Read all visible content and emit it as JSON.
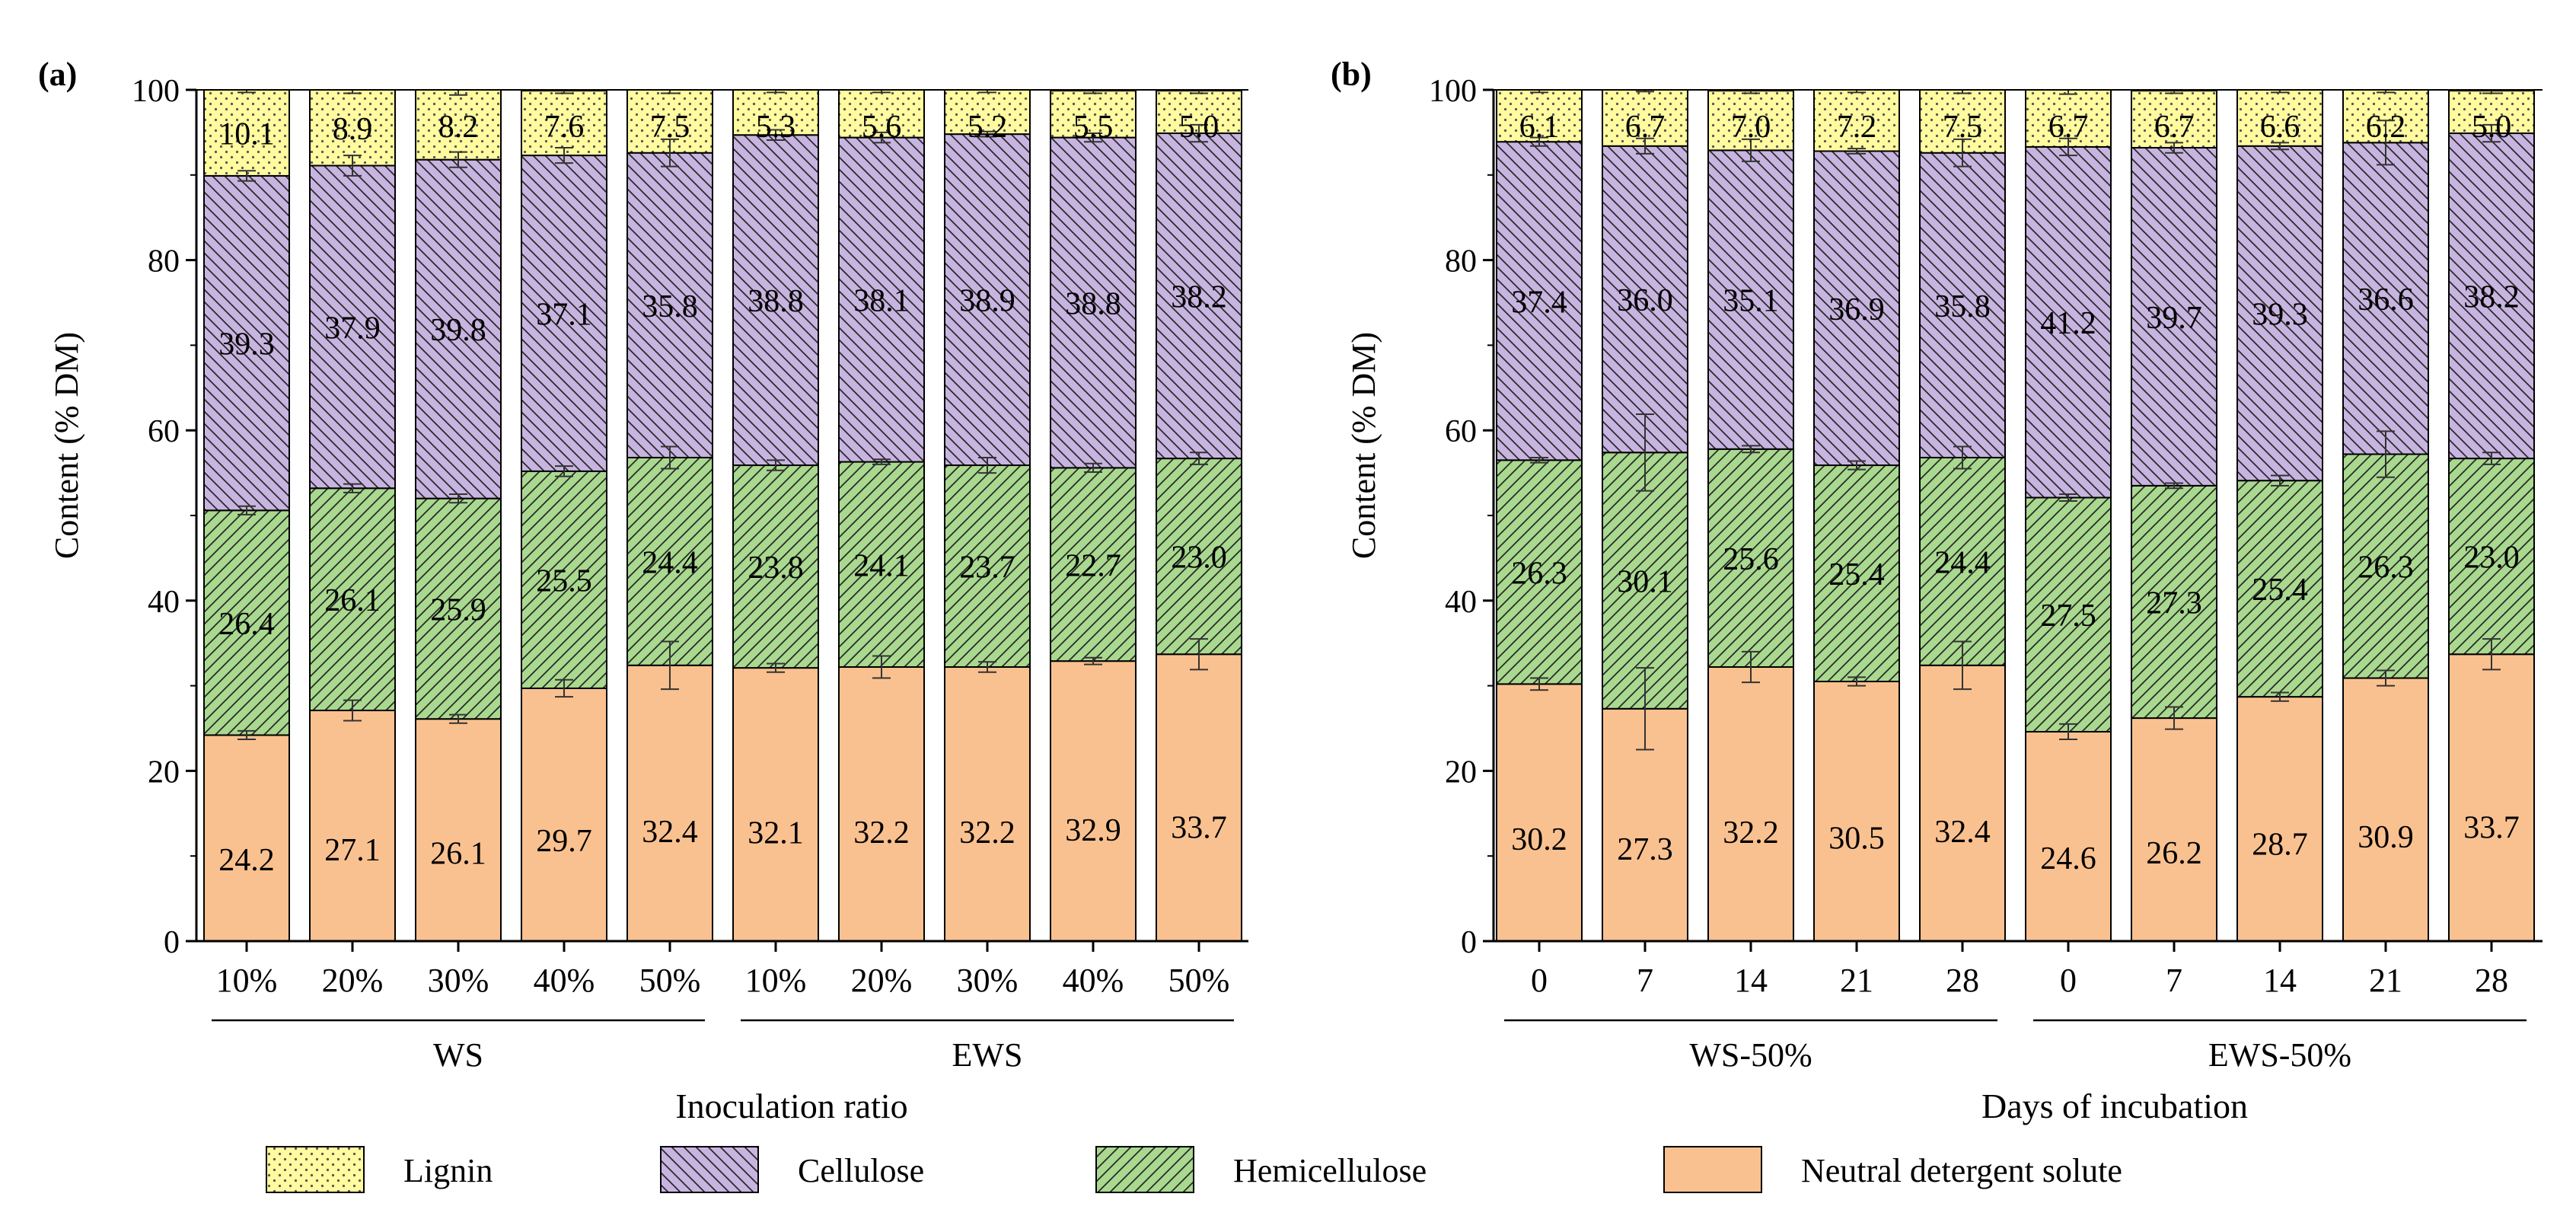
{
  "colors": {
    "lignin": "#fffb9e",
    "cellulose": "#c8b4e0",
    "hemicellulose": "#a9d98f",
    "nds": "#fac190",
    "axis": "#000000"
  },
  "legend": [
    {
      "key": "lignin",
      "label": "Lignin"
    },
    {
      "key": "cellulose",
      "label": "Cellulose"
    },
    {
      "key": "hemicellulose",
      "label": "Hemicellulose"
    },
    {
      "key": "nds",
      "label": "Neutral detergent solute"
    }
  ],
  "chart_data": [
    {
      "panel_label": "(a)",
      "type": "bar",
      "stacked": true,
      "ylabel": "Content (% DM)",
      "xlabel": "Inoculation ratio",
      "ylim": [
        0,
        100
      ],
      "yticks": [
        0,
        20,
        40,
        60,
        80,
        100
      ],
      "categories": [
        "10%",
        "20%",
        "30%",
        "40%",
        "50%",
        "10%",
        "20%",
        "30%",
        "40%",
        "50%"
      ],
      "groups": [
        {
          "label": "WS",
          "from": 0,
          "to": 4
        },
        {
          "label": "EWS",
          "from": 5,
          "to": 9
        }
      ],
      "series": [
        {
          "name": "Neutral detergent solute",
          "key": "nds",
          "values": [
            24.2,
            27.1,
            26.1,
            29.7,
            32.4,
            32.1,
            32.2,
            32.2,
            32.9,
            33.7
          ],
          "labels": [
            "24.2",
            "27.1",
            "26.1",
            "29.7",
            "32.4",
            "32.1",
            "32.2",
            "32.2",
            "32.9",
            "33.7"
          ],
          "errors": [
            0.5,
            1.2,
            0.5,
            1.0,
            2.8,
            0.5,
            1.3,
            0.6,
            0.4,
            1.8
          ]
        },
        {
          "name": "Hemicellulose",
          "key": "hemicellulose",
          "values": [
            26.4,
            26.1,
            25.9,
            25.5,
            24.4,
            23.8,
            24.1,
            23.7,
            22.7,
            23.0
          ],
          "labels": [
            "26.4",
            "26.1",
            "25.9",
            "25.5",
            "24.4",
            "23.8",
            "24.1",
            "23.7",
            "22.7",
            "23.0"
          ],
          "errors": [
            0.5,
            0.5,
            0.5,
            0.6,
            1.3,
            0.6,
            0.3,
            0.9,
            0.5,
            0.7
          ]
        },
        {
          "name": "Cellulose",
          "key": "cellulose",
          "values": [
            39.3,
            37.9,
            39.8,
            37.1,
            35.8,
            38.8,
            38.1,
            38.9,
            38.8,
            38.2
          ],
          "labels": [
            "39.3",
            "37.9",
            "39.8",
            "37.1",
            "35.8",
            "38.8",
            "38.1",
            "38.9",
            "38.8",
            "38.2"
          ],
          "errors": [
            0.6,
            1.2,
            0.9,
            0.9,
            1.6,
            0.6,
            0.6,
            0.3,
            0.5,
            1.0
          ]
        },
        {
          "name": "Lignin",
          "key": "lignin",
          "values": [
            10.1,
            8.9,
            8.2,
            7.6,
            7.5,
            5.3,
            5.6,
            5.2,
            5.5,
            5.0
          ],
          "labels": [
            "10.1",
            "8.9",
            "8.2",
            "7.6",
            "7.5",
            "5.3",
            "5.6",
            "5.2",
            "5.5",
            "5.0"
          ],
          "errors": [
            0.3,
            0.4,
            0.6,
            0.3,
            0.5,
            0.3,
            0.3,
            0.3,
            0.3,
            0.3
          ]
        }
      ]
    },
    {
      "panel_label": "(b)",
      "type": "bar",
      "stacked": true,
      "ylabel": "Content (% DM)",
      "xlabel": "Days of incubation",
      "ylim": [
        0,
        100
      ],
      "yticks": [
        0,
        20,
        40,
        60,
        80,
        100
      ],
      "categories": [
        "0",
        "7",
        "14",
        "21",
        "28",
        "0",
        "7",
        "14",
        "21",
        "28"
      ],
      "groups": [
        {
          "label": "WS-50%",
          "from": 0,
          "to": 4
        },
        {
          "label": "EWS-50%",
          "from": 5,
          "to": 9
        }
      ],
      "series": [
        {
          "name": "Neutral detergent solute",
          "key": "nds",
          "values": [
            30.2,
            27.3,
            32.2,
            30.5,
            32.4,
            24.6,
            26.2,
            28.7,
            30.9,
            33.7
          ],
          "labels": [
            "30.2",
            "27.3",
            "32.2",
            "30.5",
            "32.4",
            "24.6",
            "26.2",
            "28.7",
            "30.9",
            "33.7"
          ],
          "errors": [
            0.7,
            4.8,
            1.8,
            0.5,
            2.8,
            0.9,
            1.3,
            0.5,
            0.9,
            1.8
          ]
        },
        {
          "name": "Hemicellulose",
          "key": "hemicellulose",
          "values": [
            26.3,
            30.1,
            25.6,
            25.4,
            24.4,
            27.5,
            27.3,
            25.4,
            26.3,
            23.0
          ],
          "labels": [
            "26.3",
            "30.1",
            "25.6",
            "25.4",
            "24.4",
            "27.5",
            "27.3",
            "25.4",
            "26.3",
            "23.0"
          ],
          "errors": [
            0.3,
            4.5,
            0.4,
            0.5,
            1.3,
            0.4,
            0.3,
            0.6,
            2.7,
            0.7
          ]
        },
        {
          "name": "Cellulose",
          "key": "cellulose",
          "values": [
            37.4,
            36.0,
            35.1,
            36.9,
            35.8,
            41.2,
            39.7,
            39.3,
            36.6,
            38.2
          ],
          "labels": [
            "37.4",
            "36.0",
            "35.1",
            "36.9",
            "35.8",
            "41.2",
            "39.7",
            "39.3",
            "36.6",
            "38.2"
          ],
          "errors": [
            0.5,
            0.9,
            1.3,
            0.3,
            1.6,
            1.0,
            0.6,
            0.4,
            2.6,
            1.0
          ]
        },
        {
          "name": "Lignin",
          "key": "lignin",
          "values": [
            6.1,
            6.7,
            7.0,
            7.2,
            7.5,
            6.7,
            6.7,
            6.6,
            6.2,
            5.0
          ],
          "labels": [
            "6.1",
            "6.7",
            "7.0",
            "7.2",
            "7.5",
            "6.7",
            "6.7",
            "6.6",
            "6.2",
            "5.0"
          ],
          "errors": [
            0.3,
            0.3,
            0.3,
            0.3,
            0.5,
            0.5,
            0.3,
            0.3,
            0.3,
            0.3
          ]
        }
      ]
    }
  ]
}
